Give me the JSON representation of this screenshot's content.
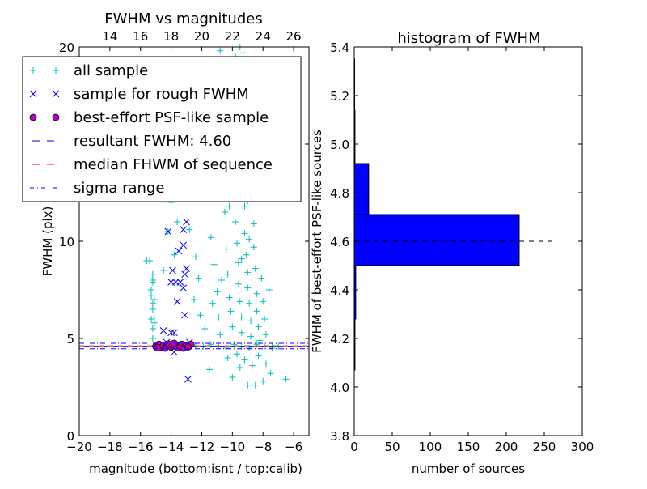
{
  "chart_data": [
    {
      "type": "scatter",
      "title": "FWHM vs magnitudes",
      "xlabel": "magnitude (bottom:isnt / top:calib)",
      "ylabel": "FWHM (pix)",
      "xlim": [
        -20,
        -5
      ],
      "ylim": [
        0,
        20
      ],
      "xticks": [
        -20,
        -18,
        -16,
        -14,
        -12,
        -10,
        -8,
        -6
      ],
      "xtick_labels": [
        "−20",
        "−18",
        "−16",
        "−14",
        "−12",
        "−10",
        "−8",
        "−6"
      ],
      "yticks": [
        0,
        5,
        10,
        15,
        20
      ],
      "ytick_labels": [
        "0",
        "5",
        "10",
        "15",
        "20"
      ],
      "top_xticks": [
        14,
        16,
        18,
        20,
        22,
        24,
        26
      ],
      "top_xtick_labels": [
        "14",
        "16",
        "18",
        "20",
        "22",
        "24",
        "26"
      ],
      "top_offset": 32,
      "legend": {
        "placement": "upper-left",
        "entries": [
          {
            "label": "all sample",
            "marker": "+",
            "color": "#00bfbf"
          },
          {
            "label": "sample for rough FWHM",
            "marker": "x",
            "color": "#0000ff"
          },
          {
            "label": "best-effort PSF-like sample",
            "marker": "o",
            "color": "#bf00bf"
          },
          {
            "label": "resultant FWHM: 4.60",
            "style": "dashed",
            "color": "#0000ff"
          },
          {
            "label": "median FHWM of sequence",
            "style": "dashed",
            "color": "#ff0000"
          },
          {
            "label": "sigma range",
            "style": "dashdot",
            "color": "#0000ff"
          }
        ]
      },
      "hlines": {
        "resultant": 4.6,
        "median": 4.62,
        "sigma_low": 4.47,
        "sigma_high": 4.75
      },
      "series": [
        {
          "name": "all sample",
          "color": "#00bfbf",
          "points": [
            [
              -15.2,
              5
            ],
            [
              -15.2,
              5.5
            ],
            [
              -15.3,
              6
            ],
            [
              -15.2,
              6.5
            ],
            [
              -15.1,
              7
            ],
            [
              -15.3,
              7.5
            ],
            [
              -15.2,
              8
            ],
            [
              -15.2,
              8.3
            ],
            [
              -15.4,
              9
            ],
            [
              -15.1,
              5.8
            ],
            [
              -15.2,
              6.8
            ],
            [
              -15.3,
              7.2
            ],
            [
              -15.1,
              6.1
            ],
            [
              -15.2,
              7.9
            ],
            [
              -15.6,
              9
            ],
            [
              -14.2,
              10.5
            ],
            [
              -14,
              12
            ],
            [
              -13.6,
              11
            ],
            [
              -13,
              13.5
            ],
            [
              -14.8,
              12.5
            ],
            [
              -14.5,
              8.5
            ],
            [
              -13.8,
              9.3
            ],
            [
              -12.8,
              10.6
            ],
            [
              -12.4,
              9.2
            ],
            [
              -12.2,
              8.1
            ],
            [
              -12.5,
              7
            ],
            [
              -12.1,
              6.2
            ],
            [
              -11.8,
              5.5
            ],
            [
              -11.6,
              12.2
            ],
            [
              -11.4,
              10.2
            ],
            [
              -11.2,
              8.8
            ],
            [
              -11,
              7.4
            ],
            [
              -10.9,
              6.1
            ],
            [
              -10.8,
              5.2
            ],
            [
              -10.6,
              13.4
            ],
            [
              -10.5,
              11.5
            ],
            [
              -10.4,
              9.6
            ],
            [
              -10.3,
              8.3
            ],
            [
              -10.2,
              7.1
            ],
            [
              -10.1,
              6.4
            ],
            [
              -10,
              5.6
            ],
            [
              -9.9,
              14.3
            ],
            [
              -9.8,
              12.8
            ],
            [
              -9.8,
              11
            ],
            [
              -9.7,
              9.9
            ],
            [
              -9.6,
              8.9
            ],
            [
              -9.6,
              7.8
            ],
            [
              -9.5,
              6.9
            ],
            [
              -9.4,
              6.1
            ],
            [
              -9.4,
              5.3
            ],
            [
              -9.3,
              13.1
            ],
            [
              -9.2,
              11.8
            ],
            [
              -9.2,
              10.4
            ],
            [
              -9.1,
              9.3
            ],
            [
              -9.0,
              8.4
            ],
            [
              -9.0,
              7.6
            ],
            [
              -8.9,
              6.8
            ],
            [
              -8.8,
              5.9
            ],
            [
              -8.8,
              5.1
            ],
            [
              -8.7,
              12.4
            ],
            [
              -8.6,
              10.9
            ],
            [
              -8.6,
              9.7
            ],
            [
              -8.5,
              8.6
            ],
            [
              -8.4,
              7.3
            ],
            [
              -8.4,
              6.4
            ],
            [
              -8.3,
              5.6
            ],
            [
              -8.2,
              4.9
            ],
            [
              -8.1,
              8.1
            ],
            [
              -8.0,
              6.9
            ],
            [
              -7.9,
              6.0
            ],
            [
              -7.8,
              5.2
            ],
            [
              -7.6,
              7.5
            ],
            [
              -7.4,
              4.6
            ],
            [
              -7.2,
              13.7
            ],
            [
              -9.7,
              4.2
            ],
            [
              -9.2,
              3.9
            ],
            [
              -8.7,
              3.6
            ],
            [
              -8.3,
              4.1
            ],
            [
              -7.8,
              3.7
            ],
            [
              -9.5,
              3.5
            ],
            [
              -10.3,
              4.0
            ],
            [
              -12.4,
              4.6
            ],
            [
              -11.9,
              4.6
            ],
            [
              -11.4,
              4.7
            ],
            [
              -10.9,
              4.6
            ],
            [
              -10.4,
              4.5
            ],
            [
              -9.9,
              4.7
            ],
            [
              -9.4,
              4.6
            ],
            [
              -8.9,
              4.5
            ],
            [
              -8.4,
              4.7
            ],
            [
              -7.9,
              4.6
            ],
            [
              -7.4,
              4.5
            ],
            [
              -7.0,
              4.6
            ],
            [
              -11.5,
              3.4
            ],
            [
              -10,
              3
            ],
            [
              -9,
              2.6
            ],
            [
              -8.5,
              2.6
            ],
            [
              -7.5,
              3.2
            ],
            [
              -6.5,
              2.9
            ],
            [
              -8,
              2.8
            ],
            [
              -9.5,
              20
            ],
            [
              -9.3,
              19.7
            ],
            [
              -9.8,
              19.5
            ],
            [
              -10.8,
              19.8
            ],
            [
              -8.8,
              19.2
            ],
            [
              -10.2,
              11.8
            ],
            [
              -9.0,
              12.1
            ],
            [
              -8.9,
              10.1
            ],
            [
              -9.4,
              9.1
            ],
            [
              -10.7,
              8.0
            ],
            [
              -11.3,
              6.8
            ]
          ]
        },
        {
          "name": "sample for rough FWHM",
          "color": "#0000ff",
          "points": [
            [
              -14.2,
              10.5
            ],
            [
              -13.2,
              10.6
            ],
            [
              -13,
              11
            ],
            [
              -13.5,
              9.5
            ],
            [
              -13.9,
              8.5
            ],
            [
              -13.7,
              7.9
            ],
            [
              -13.0,
              8.6
            ],
            [
              -13.1,
              8.3
            ],
            [
              -13.4,
              7.9
            ],
            [
              -13.2,
              7.6
            ],
            [
              -13.6,
              6.9
            ],
            [
              -13.1,
              6.2
            ],
            [
              -13.8,
              5.3
            ],
            [
              -14.5,
              5.4
            ],
            [
              -14.0,
              5.3
            ],
            [
              -13.8,
              4.3
            ],
            [
              -12.9,
              2.9
            ],
            [
              -14.3,
              4.8
            ],
            [
              -13.5,
              4.6
            ],
            [
              -14.8,
              4.6
            ],
            [
              -12.8,
              4.8
            ],
            [
              -13.2,
              9.8
            ],
            [
              -14,
              7.9
            ]
          ]
        },
        {
          "name": "best-effort PSF-like sample",
          "color": "#bf00bf",
          "points": [
            [
              -15.0,
              4.6
            ],
            [
              -14.8,
              4.7
            ],
            [
              -14.6,
              4.55
            ],
            [
              -14.5,
              4.65
            ],
            [
              -14.3,
              4.6
            ],
            [
              -14.2,
              4.72
            ],
            [
              -14.0,
              4.55
            ],
            [
              -13.9,
              4.62
            ],
            [
              -13.7,
              4.68
            ],
            [
              -13.6,
              4.52
            ],
            [
              -13.4,
              4.6
            ],
            [
              -13.3,
              4.7
            ],
            [
              -13.1,
              4.58
            ],
            [
              -13.0,
              4.64
            ],
            [
              -12.8,
              4.6
            ],
            [
              -12.7,
              4.7
            ],
            [
              -14.9,
              4.52
            ],
            [
              -14.4,
              4.5
            ],
            [
              -13.8,
              4.75
            ],
            [
              -13.2,
              4.5
            ],
            [
              -12.9,
              4.56
            ]
          ]
        }
      ]
    },
    {
      "type": "bar",
      "orientation": "horizontal",
      "title": "histogram of FWHM",
      "xlabel": "number of sources",
      "ylabel": "FWHM of best-effort PSF-like sources",
      "xlim": [
        0,
        300
      ],
      "ylim": [
        3.8,
        5.4
      ],
      "xticks": [
        0,
        50,
        100,
        150,
        200,
        250,
        300
      ],
      "xtick_labels": [
        "0",
        "50",
        "100",
        "150",
        "200",
        "250",
        "300"
      ],
      "yticks": [
        3.8,
        4.0,
        4.2,
        4.4,
        4.6,
        4.8,
        5.0,
        5.2,
        5.4
      ],
      "ytick_labels": [
        "3.8",
        "4.0",
        "4.2",
        "4.4",
        "4.6",
        "4.8",
        "5.0",
        "5.2",
        "5.4"
      ],
      "bin_edges": [
        4.07,
        4.28,
        4.5,
        4.71,
        4.92,
        5.14,
        5.35
      ],
      "counts": [
        1,
        2,
        217,
        19,
        1,
        0
      ],
      "color": "#0000ff",
      "reference_line": {
        "value": 4.6,
        "xmax": 260,
        "style": "dashed",
        "color": "#000000"
      }
    }
  ]
}
